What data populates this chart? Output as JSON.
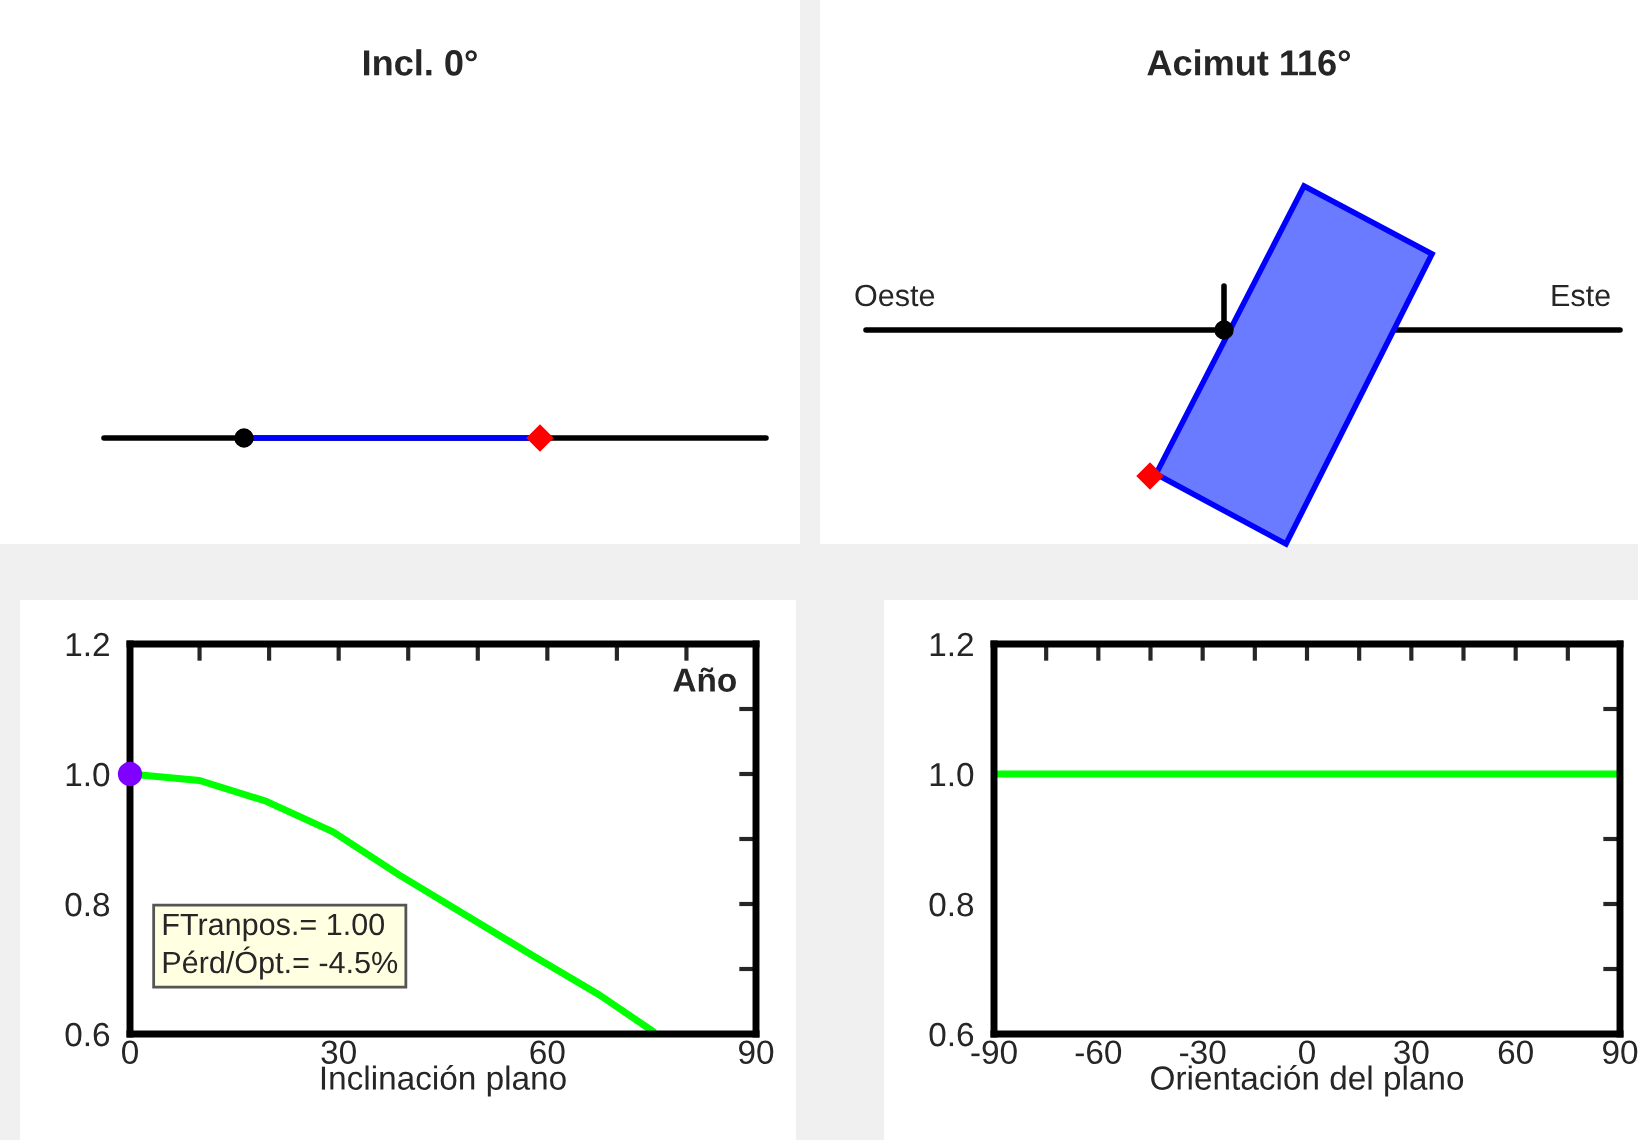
{
  "chart_data": [
    {
      "type": "other",
      "title": "Incl. 0°"
    },
    {
      "type": "other",
      "title": "Acimut 116°",
      "annotations": [
        "Oeste",
        "Este"
      ]
    },
    {
      "type": "line",
      "xlabel": "Inclinación plano",
      "xlim": [
        0,
        90
      ],
      "ylim": [
        0.6,
        1.2
      ],
      "xticks": [
        0,
        {
          "value": 10,
          "label": null
        },
        {
          "value": 20,
          "label": null
        },
        30,
        {
          "value": 40,
          "label": null
        },
        {
          "value": 50,
          "label": null
        },
        60,
        {
          "value": 70,
          "label": null
        },
        {
          "value": 80,
          "label": null
        },
        90
      ],
      "yticks": [
        0.6,
        {
          "value": 0.7,
          "label": null
        },
        0.8,
        {
          "value": 0.9,
          "label": null
        },
        {
          "value": 1.0,
          "label": "1.0"
        },
        {
          "value": 1.1,
          "label": null
        },
        1.2
      ],
      "annotations": [
        "Año",
        "FTranpos.= 1.00\nPérd/Ópt.= -4.5%"
      ],
      "series": [
        {
          "type": "line",
          "color": "#00ff00",
          "x": [
            0,
            10,
            19.6,
            29.2,
            38.8,
            58,
            67.5,
            75.2
          ],
          "values": [
            1.0,
            0.99,
            0.958,
            0.911,
            0.844,
            0.72,
            0.66,
            0.604
          ]
        },
        {
          "type": "scatter",
          "color": "#8000ff",
          "marker": "circle",
          "x": [
            0
          ],
          "values": [
            1.0
          ]
        }
      ]
    },
    {
      "type": "line",
      "xlabel": "Orientación del plano",
      "xlim": [
        -90,
        90
      ],
      "ylim": [
        0.6,
        1.2
      ],
      "xticks": [
        -90,
        {
          "value": -75,
          "label": null
        },
        -60,
        {
          "value": -45,
          "label": null
        },
        -30,
        {
          "value": -15,
          "label": null
        },
        0,
        {
          "value": 15,
          "label": null
        },
        30,
        {
          "value": 45,
          "label": null
        },
        60,
        {
          "value": 75,
          "label": null
        },
        90
      ],
      "yticks": [
        0.6,
        {
          "value": 0.7,
          "label": null
        },
        0.8,
        {
          "value": 0.9,
          "label": null
        },
        {
          "value": 1.0,
          "label": "1.0"
        },
        {
          "value": 1.1,
          "label": null
        },
        1.2
      ],
      "series": [
        {
          "type": "line",
          "color": "#00ff00",
          "x": [
            -90,
            90
          ],
          "values": [
            1.0,
            1.0
          ]
        }
      ]
    }
  ]
}
